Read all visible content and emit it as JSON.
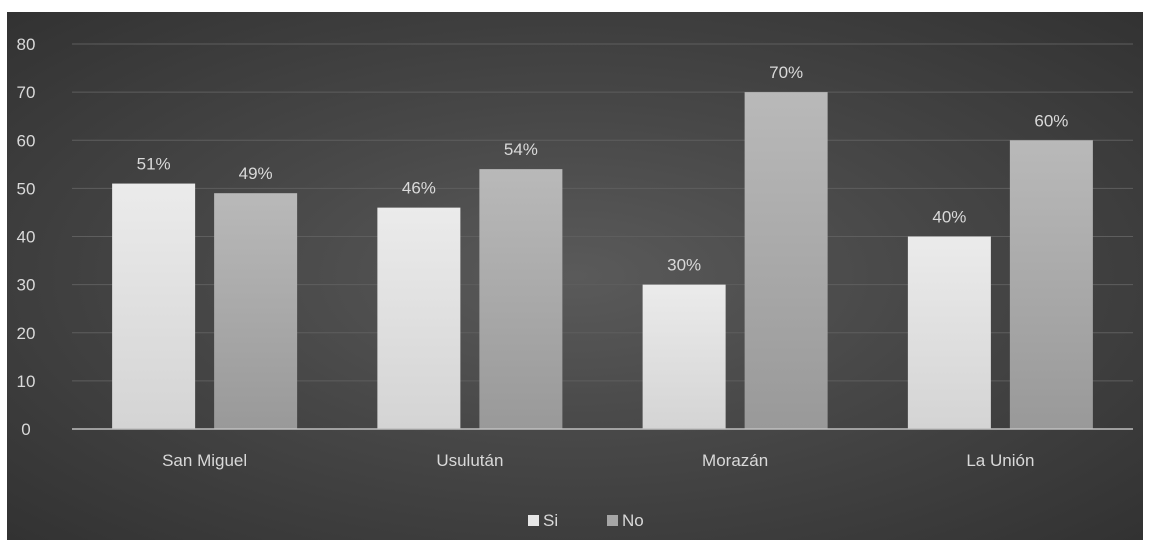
{
  "chart_data": {
    "type": "bar",
    "categories": [
      "San Miguel",
      "Usulután",
      "Morazán",
      "La Unión"
    ],
    "series": [
      {
        "name": "Si",
        "values": [
          51,
          46,
          30,
          40
        ],
        "labels": [
          "51%",
          "46%",
          "30%",
          "40%"
        ],
        "color": "#e3e3e3"
      },
      {
        "name": "No",
        "values": [
          49,
          54,
          70,
          60
        ],
        "labels": [
          "49%",
          "54%",
          "70%",
          "60%"
        ],
        "color": "#a9a9a9"
      }
    ],
    "ylim": [
      0,
      80
    ],
    "yticks": [
      0,
      10,
      20,
      30,
      40,
      50,
      60,
      70,
      80
    ],
    "grid": true,
    "legend": "bottom",
    "title": "",
    "xlabel": "",
    "ylabel": ""
  }
}
